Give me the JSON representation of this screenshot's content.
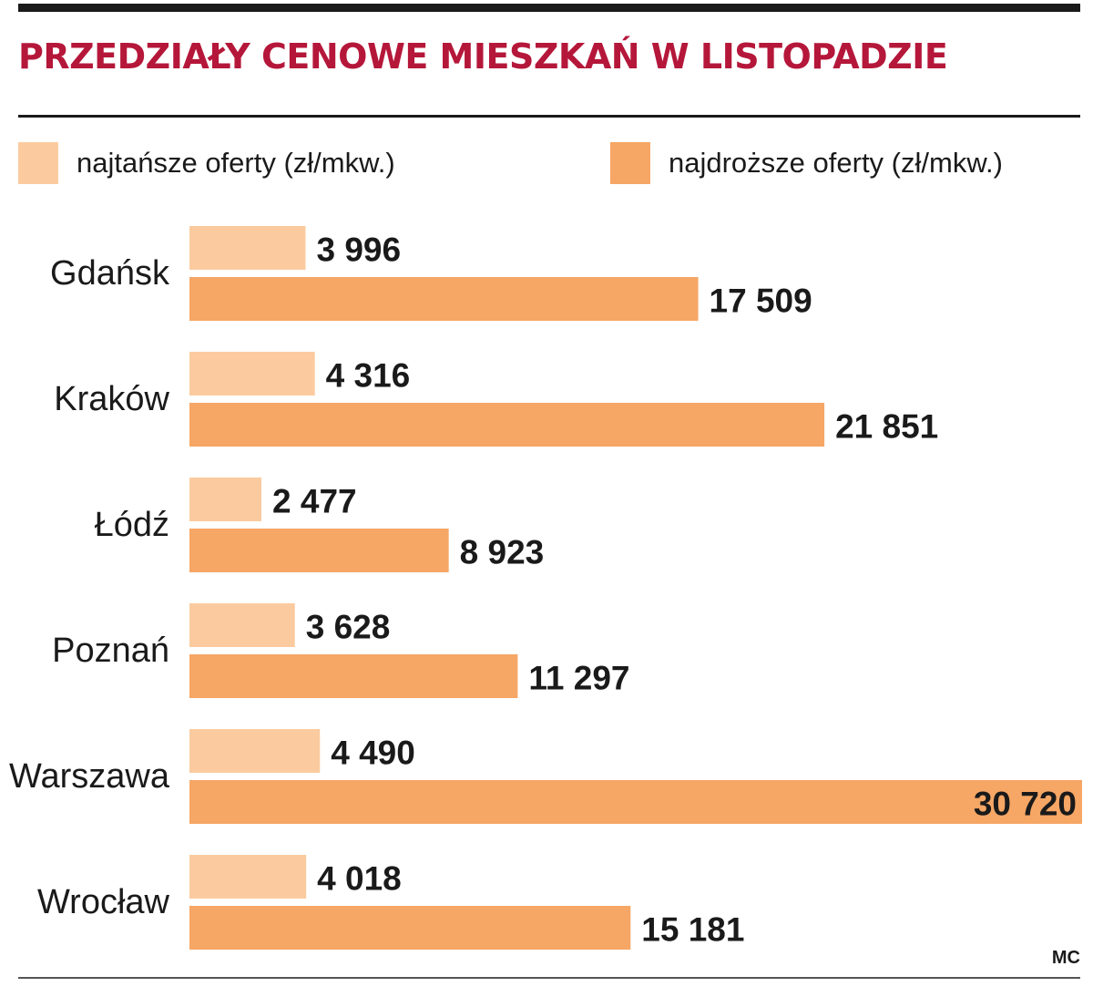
{
  "chart_data": {
    "type": "bar",
    "orientation": "horizontal",
    "title": "PRZEDZIAŁY CENOWE MIESZKAŃ W LISTOPADZIE",
    "categories": [
      "Gdańsk",
      "Kraków",
      "Łódź",
      "Poznań",
      "Warszawa",
      "Wrocław"
    ],
    "series": [
      {
        "name": "najtańsze oferty (zł/mkw.)",
        "values": [
          3996,
          4316,
          2477,
          3628,
          4490,
          4018
        ],
        "labels": [
          "3 996",
          "4 316",
          "2 477",
          "3 628",
          "4 490",
          "4 018"
        ],
        "color": "#fbcb9f"
      },
      {
        "name": "najdroższe oferty (zł/mkw.)",
        "values": [
          17509,
          21851,
          8923,
          11297,
          30720,
          15181
        ],
        "labels": [
          "17 509",
          "21 851",
          "8 923",
          "11 297",
          "30 720",
          "15 181"
        ],
        "color": "#f6a665"
      }
    ],
    "xlim": [
      0,
      30720
    ],
    "grid": false,
    "legend_position": "top"
  },
  "credit": "MC"
}
